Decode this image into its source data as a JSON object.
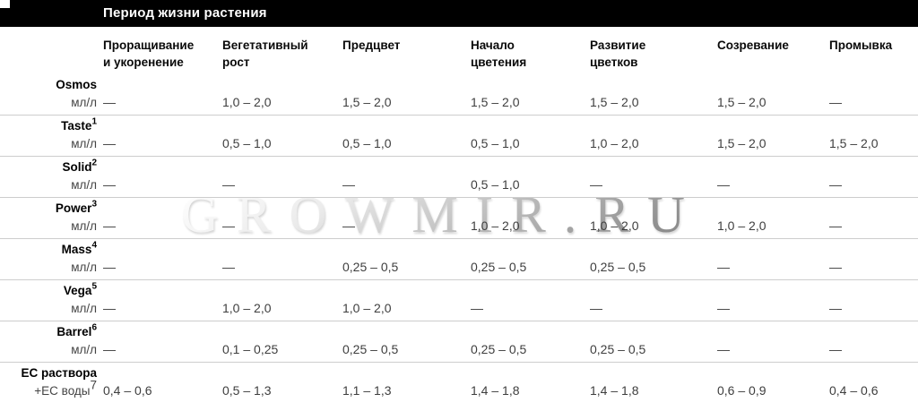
{
  "header": {
    "title": "Период жизни растения"
  },
  "chart_data": {
    "type": "table",
    "title": "Период жизни растения",
    "columns": [
      "Проращивание и укоренение",
      "Вегетативный рост",
      "Предцвет",
      "Начало цветения",
      "Развитие цветков",
      "Созревание",
      "Промывка"
    ],
    "empty_cell_symbol": "—",
    "rows": [
      {
        "name": "Osmos",
        "footnote": "",
        "unit": "мл/л",
        "unit_footnote": "",
        "values": [
          "—",
          "1,0 – 2,0",
          "1,5 – 2,0",
          "1,5 – 2,0",
          "1,5 – 2,0",
          "1,5 – 2,0",
          "—"
        ]
      },
      {
        "name": "Taste",
        "footnote": "1",
        "unit": "мл/л",
        "unit_footnote": "",
        "values": [
          "—",
          "0,5 – 1,0",
          "0,5 – 1,0",
          "0,5 – 1,0",
          "1,0 – 2,0",
          "1,5 – 2,0",
          "1,5 – 2,0"
        ]
      },
      {
        "name": "Solid",
        "footnote": "2",
        "unit": "мл/л",
        "unit_footnote": "",
        "values": [
          "—",
          "—",
          "—",
          "0,5 – 1,0",
          "—",
          "—",
          "—"
        ]
      },
      {
        "name": "Power",
        "footnote": "3",
        "unit": "мл/л",
        "unit_footnote": "",
        "values": [
          "—",
          "—",
          "—",
          "1,0 – 2,0",
          "1,0 – 2,0",
          "1,0 – 2,0",
          "—"
        ]
      },
      {
        "name": "Mass",
        "footnote": "4",
        "unit": "мл/л",
        "unit_footnote": "",
        "values": [
          "—",
          "—",
          "0,25 – 0,5",
          "0,25 – 0,5",
          "0,25 – 0,5",
          "—",
          "—"
        ]
      },
      {
        "name": "Vega",
        "footnote": "5",
        "unit": "мл/л",
        "unit_footnote": "",
        "values": [
          "—",
          "1,0 – 2,0",
          "1,0 – 2,0",
          "—",
          "—",
          "—",
          "—"
        ]
      },
      {
        "name": "Barrel",
        "footnote": "6",
        "unit": "мл/л",
        "unit_footnote": "",
        "values": [
          "—",
          "0,1 – 0,25",
          "0,25 – 0,5",
          "0,25 – 0,5",
          "0,25 – 0,5",
          "—",
          "—"
        ]
      },
      {
        "name": "EC раствора",
        "footnote": "",
        "unit": "+EC воды",
        "unit_footnote": "7",
        "values": [
          "0,4 – 0,6",
          "0,5 – 1,3",
          "1,1 – 1,3",
          "1,4 – 1,8",
          "1,4 – 1,8",
          "0,6 – 0,9",
          "0,4 – 0,6"
        ]
      }
    ]
  },
  "watermark": {
    "text": "GROWMIR.RU"
  },
  "colors": {
    "header_bar_bg": "#000000",
    "header_bar_text": "#ffffff",
    "separator": "#cdcdcd",
    "value_text": "#3e3e3e"
  }
}
